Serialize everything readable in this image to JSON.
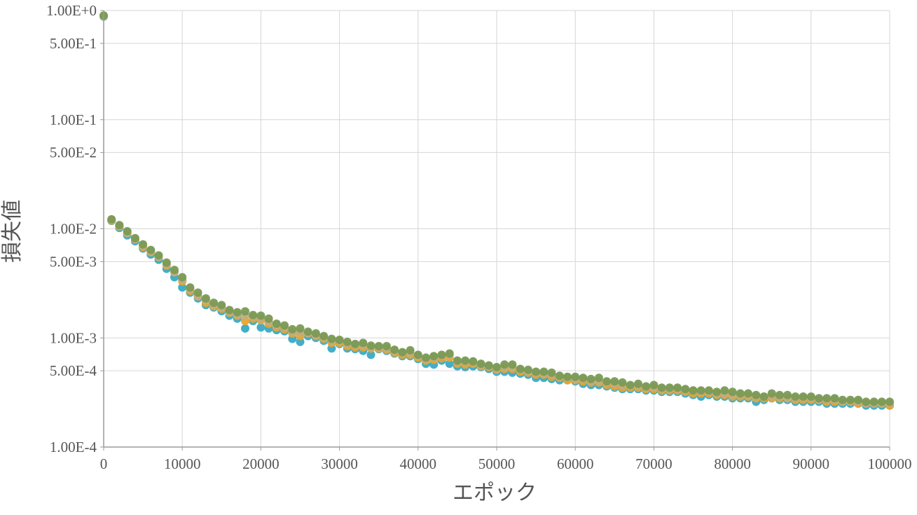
{
  "chart_data": {
    "type": "scatter",
    "title": "",
    "xlabel": "エポック",
    "ylabel": "損失値",
    "xlim": [
      0,
      100000
    ],
    "ylim": [
      0.0001,
      1
    ],
    "yscale": "log",
    "grid": true,
    "x_ticks": [
      "0",
      "10000",
      "20000",
      "30000",
      "40000",
      "50000",
      "60000",
      "70000",
      "80000",
      "90000",
      "100000"
    ],
    "x_tick_values": [
      0,
      10000,
      20000,
      30000,
      40000,
      50000,
      60000,
      70000,
      80000,
      90000,
      100000
    ],
    "y_ticks": [
      "1.00E+0",
      "5.00E-1",
      "1.00E-1",
      "5.00E-2",
      "1.00E-2",
      "5.00E-3",
      "1.00E-3",
      "5.00E-4",
      "1.00E-4"
    ],
    "y_tick_values": [
      1,
      0.5,
      0.1,
      0.05,
      0.01,
      0.005,
      0.001,
      0.0005,
      0.0001
    ],
    "series": [
      {
        "color": "#3aaac4",
        "x": [
          0,
          1000,
          2000,
          3000,
          4000,
          5000,
          6000,
          7000,
          8000,
          9000,
          10000,
          11000,
          12000,
          13000,
          14000,
          15000,
          16000,
          17000,
          18000,
          19000,
          20000,
          21000,
          22000,
          23000,
          24000,
          25000,
          26000,
          27000,
          28000,
          29000,
          30000,
          31000,
          32000,
          33000,
          34000,
          35000,
          36000,
          37000,
          38000,
          39000,
          40000,
          41000,
          42000,
          43000,
          44000,
          45000,
          46000,
          47000,
          48000,
          49000,
          50000,
          51000,
          52000,
          53000,
          54000,
          55000,
          56000,
          57000,
          58000,
          59000,
          60000,
          61000,
          62000,
          63000,
          64000,
          65000,
          66000,
          67000,
          68000,
          69000,
          70000,
          71000,
          72000,
          73000,
          74000,
          75000,
          76000,
          77000,
          78000,
          79000,
          80000,
          81000,
          82000,
          83000,
          84000,
          85000,
          86000,
          87000,
          88000,
          89000,
          90000,
          91000,
          92000,
          93000,
          94000,
          95000,
          96000,
          97000,
          98000,
          99000,
          100000
        ],
        "y": [
          0.88,
          0.0118,
          0.0102,
          0.0087,
          0.0077,
          0.0066,
          0.0058,
          0.0052,
          0.0043,
          0.0036,
          0.0029,
          0.0026,
          0.0023,
          0.002,
          0.0019,
          0.00176,
          0.0016,
          0.0015,
          0.00122,
          0.00143,
          0.00125,
          0.00122,
          0.00118,
          0.00115,
          0.00098,
          0.00092,
          0.00104,
          0.001,
          0.00094,
          0.0008,
          0.00088,
          0.0008,
          0.00079,
          0.00076,
          0.0007,
          0.00079,
          0.00076,
          0.00072,
          0.00068,
          0.00068,
          0.00064,
          0.00058,
          0.00057,
          0.00062,
          0.00058,
          0.00055,
          0.00054,
          0.00055,
          0.00054,
          0.00052,
          0.00049,
          0.00049,
          0.00048,
          0.00047,
          0.00046,
          0.00043,
          0.00043,
          0.00042,
          0.00041,
          0.00041,
          0.0004,
          0.00038,
          0.00037,
          0.00037,
          0.00036,
          0.00035,
          0.00034,
          0.00034,
          0.00034,
          0.00033,
          0.00033,
          0.00032,
          0.00032,
          0.00032,
          0.00031,
          0.0003,
          0.00029,
          0.0003,
          0.00029,
          0.00029,
          0.00028,
          0.00028,
          0.00028,
          0.00026,
          0.00027,
          0.00028,
          0.00027,
          0.00027,
          0.00026,
          0.00026,
          0.00026,
          0.00026,
          0.00025,
          0.00025,
          0.00025,
          0.00025,
          0.00025,
          0.00024,
          0.00024,
          0.00024,
          0.00024
        ]
      },
      {
        "color": "#e8a430",
        "x": [
          0,
          1000,
          2000,
          3000,
          4000,
          5000,
          6000,
          7000,
          8000,
          9000,
          10000,
          11000,
          12000,
          13000,
          14000,
          15000,
          16000,
          17000,
          18000,
          19000,
          20000,
          21000,
          22000,
          23000,
          24000,
          25000,
          26000,
          27000,
          28000,
          29000,
          30000,
          31000,
          32000,
          33000,
          34000,
          35000,
          36000,
          37000,
          38000,
          39000,
          40000,
          41000,
          42000,
          43000,
          44000,
          45000,
          46000,
          47000,
          48000,
          49000,
          50000,
          51000,
          52000,
          53000,
          54000,
          55000,
          56000,
          57000,
          58000,
          59000,
          60000,
          61000,
          62000,
          63000,
          64000,
          65000,
          66000,
          67000,
          68000,
          69000,
          70000,
          71000,
          72000,
          73000,
          74000,
          75000,
          76000,
          77000,
          78000,
          79000,
          80000,
          81000,
          82000,
          83000,
          84000,
          85000,
          86000,
          87000,
          88000,
          89000,
          90000,
          91000,
          92000,
          93000,
          94000,
          95000,
          96000,
          97000,
          98000,
          99000,
          100000
        ],
        "y": [
          0.89,
          0.0119,
          0.0105,
          0.0091,
          0.008,
          0.0068,
          0.0061,
          0.0055,
          0.0046,
          0.004,
          0.0033,
          0.0027,
          0.0024,
          0.0021,
          0.00195,
          0.00185,
          0.0017,
          0.0016,
          0.00143,
          0.0015,
          0.00145,
          0.00135,
          0.00125,
          0.0012,
          0.0011,
          0.00104,
          0.0011,
          0.00104,
          0.00098,
          0.0009,
          0.0009,
          0.00084,
          0.00082,
          0.00082,
          0.0008,
          0.0008,
          0.00078,
          0.00073,
          0.0007,
          0.0007,
          0.00066,
          0.00062,
          0.00063,
          0.00065,
          0.00066,
          0.00058,
          0.00057,
          0.00058,
          0.00055,
          0.00054,
          0.00051,
          0.00052,
          0.00052,
          0.00049,
          0.00048,
          0.00046,
          0.00046,
          0.00044,
          0.00043,
          0.00041,
          0.00041,
          0.0004,
          0.00039,
          0.00039,
          0.00037,
          0.00036,
          0.00035,
          0.00035,
          0.00035,
          0.00034,
          0.00034,
          0.00033,
          0.00033,
          0.00033,
          0.00032,
          0.00031,
          0.00031,
          0.00031,
          0.0003,
          0.0003,
          0.00029,
          0.00029,
          0.00029,
          0.00028,
          0.00028,
          0.00028,
          0.00028,
          0.00028,
          0.00027,
          0.00027,
          0.00027,
          0.00027,
          0.00026,
          0.00026,
          0.00026,
          0.00026,
          0.00025,
          0.00025,
          0.00025,
          0.00025,
          0.00024
        ]
      },
      {
        "color": "#c2ad7c",
        "x": [
          0,
          1000,
          2000,
          3000,
          4000,
          5000,
          6000,
          7000,
          8000,
          9000,
          10000,
          11000,
          12000,
          13000,
          14000,
          15000,
          16000,
          17000,
          18000,
          19000,
          20000,
          21000,
          22000,
          23000,
          24000,
          25000,
          26000,
          27000,
          28000,
          29000,
          30000,
          31000,
          32000,
          33000,
          34000,
          35000,
          36000,
          37000,
          38000,
          39000,
          40000,
          41000,
          42000,
          43000,
          44000,
          45000,
          46000,
          47000,
          48000,
          49000,
          50000,
          51000,
          52000,
          53000,
          54000,
          55000,
          56000,
          57000,
          58000,
          59000,
          60000,
          61000,
          62000,
          63000,
          64000,
          65000,
          66000,
          67000,
          68000,
          69000,
          70000,
          71000,
          72000,
          73000,
          74000,
          75000,
          76000,
          77000,
          78000,
          79000,
          80000,
          81000,
          82000,
          83000,
          84000,
          85000,
          86000,
          87000,
          88000,
          89000,
          90000,
          91000,
          92000,
          93000,
          94000,
          95000,
          96000,
          97000,
          98000,
          99000,
          100000
        ],
        "y": [
          0.89,
          0.012,
          0.0106,
          0.0092,
          0.008,
          0.007,
          0.0062,
          0.0055,
          0.0047,
          0.004,
          0.0034,
          0.0028,
          0.0024,
          0.0022,
          0.002,
          0.0019,
          0.00172,
          0.00162,
          0.0016,
          0.00156,
          0.0015,
          0.0014,
          0.0013,
          0.00124,
          0.00112,
          0.00112,
          0.0011,
          0.00106,
          0.001,
          0.00094,
          0.00094,
          0.00088,
          0.00086,
          0.00086,
          0.00082,
          0.00082,
          0.0008,
          0.00076,
          0.00073,
          0.00073,
          0.00068,
          0.00064,
          0.00066,
          0.00068,
          0.0007,
          0.0006,
          0.0006,
          0.0006,
          0.00056,
          0.00055,
          0.00052,
          0.00054,
          0.00054,
          0.00051,
          0.00049,
          0.00048,
          0.00047,
          0.00046,
          0.00044,
          0.00043,
          0.00042,
          0.00042,
          0.0004,
          0.0004,
          0.00039,
          0.00038,
          0.00037,
          0.00036,
          0.00036,
          0.00035,
          0.00035,
          0.00034,
          0.00034,
          0.00034,
          0.00033,
          0.00033,
          0.00032,
          0.00032,
          0.00031,
          0.00031,
          0.0003,
          0.0003,
          0.0003,
          0.00029,
          0.00029,
          0.00029,
          0.00029,
          0.00028,
          0.00028,
          0.00028,
          0.00028,
          0.00027,
          0.00027,
          0.00027,
          0.00026,
          0.00026,
          0.00026,
          0.00025,
          0.00025,
          0.00025,
          0.00025
        ]
      },
      {
        "color": "#7a9a55",
        "x": [
          0,
          1000,
          2000,
          3000,
          4000,
          5000,
          6000,
          7000,
          8000,
          9000,
          10000,
          11000,
          12000,
          13000,
          14000,
          15000,
          16000,
          17000,
          18000,
          19000,
          20000,
          21000,
          22000,
          23000,
          24000,
          25000,
          26000,
          27000,
          28000,
          29000,
          30000,
          31000,
          32000,
          33000,
          34000,
          35000,
          36000,
          37000,
          38000,
          39000,
          40000,
          41000,
          42000,
          43000,
          44000,
          45000,
          46000,
          47000,
          48000,
          49000,
          50000,
          51000,
          52000,
          53000,
          54000,
          55000,
          56000,
          57000,
          58000,
          59000,
          60000,
          61000,
          62000,
          63000,
          64000,
          65000,
          66000,
          67000,
          68000,
          69000,
          70000,
          71000,
          72000,
          73000,
          74000,
          75000,
          76000,
          77000,
          78000,
          79000,
          80000,
          81000,
          82000,
          83000,
          84000,
          85000,
          86000,
          87000,
          88000,
          89000,
          90000,
          91000,
          92000,
          93000,
          94000,
          95000,
          96000,
          97000,
          98000,
          99000,
          100000
        ],
        "y": [
          0.9,
          0.0122,
          0.0108,
          0.0095,
          0.0082,
          0.0072,
          0.0064,
          0.0057,
          0.0049,
          0.0042,
          0.0036,
          0.0029,
          0.0026,
          0.0023,
          0.0021,
          0.002,
          0.0018,
          0.00172,
          0.00175,
          0.00162,
          0.0016,
          0.0015,
          0.00135,
          0.0013,
          0.0012,
          0.00122,
          0.00114,
          0.0011,
          0.00104,
          0.00098,
          0.00096,
          0.00092,
          0.00088,
          0.0009,
          0.00085,
          0.00084,
          0.00084,
          0.00078,
          0.00074,
          0.00077,
          0.0007,
          0.00066,
          0.00068,
          0.0007,
          0.00072,
          0.00062,
          0.00062,
          0.00061,
          0.00058,
          0.00056,
          0.00054,
          0.00057,
          0.00057,
          0.00052,
          0.00051,
          0.00049,
          0.00049,
          0.00048,
          0.00045,
          0.00044,
          0.00044,
          0.00043,
          0.00042,
          0.00043,
          0.0004,
          0.0004,
          0.00039,
          0.00037,
          0.00038,
          0.00036,
          0.00037,
          0.00035,
          0.00035,
          0.00035,
          0.00034,
          0.00033,
          0.00033,
          0.00033,
          0.00032,
          0.00033,
          0.00032,
          0.00031,
          0.00031,
          0.0003,
          0.00029,
          0.00031,
          0.0003,
          0.0003,
          0.00029,
          0.00029,
          0.00029,
          0.00028,
          0.00028,
          0.00028,
          0.00027,
          0.00027,
          0.00027,
          0.00026,
          0.00026,
          0.00026,
          0.00026
        ]
      }
    ]
  }
}
